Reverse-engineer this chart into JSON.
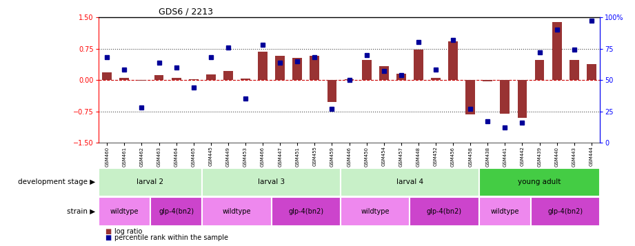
{
  "title": "GDS6 / 2213",
  "samples": [
    "GSM460",
    "GSM461",
    "GSM462",
    "GSM463",
    "GSM464",
    "GSM465",
    "GSM445",
    "GSM449",
    "GSM453",
    "GSM466",
    "GSM447",
    "GSM451",
    "GSM455",
    "GSM459",
    "GSM446",
    "GSM450",
    "GSM454",
    "GSM457",
    "GSM448",
    "GSM452",
    "GSM456",
    "GSM458",
    "GSM438",
    "GSM441",
    "GSM442",
    "GSM439",
    "GSM440",
    "GSM443",
    "GSM444"
  ],
  "log_ratio": [
    0.18,
    0.05,
    -0.02,
    0.12,
    0.05,
    0.02,
    0.14,
    0.22,
    0.04,
    0.68,
    0.57,
    0.52,
    0.57,
    -0.52,
    0.02,
    0.48,
    0.33,
    0.15,
    0.72,
    0.05,
    0.92,
    -0.82,
    -0.03,
    -0.8,
    -0.9,
    0.48,
    1.38,
    0.48,
    0.38
  ],
  "percentile": [
    68,
    58,
    28,
    64,
    60,
    44,
    68,
    76,
    35,
    78,
    64,
    65,
    68,
    27,
    50,
    70,
    57,
    54,
    80,
    58,
    82,
    27,
    17,
    12,
    16,
    72,
    90,
    74,
    97
  ],
  "dev_stage_groups": [
    {
      "label": "larval 2",
      "start": 0,
      "end": 5,
      "color": "#c8f0c8"
    },
    {
      "label": "larval 3",
      "start": 6,
      "end": 13,
      "color": "#c8f0c8"
    },
    {
      "label": "larval 4",
      "start": 14,
      "end": 21,
      "color": "#c8f0c8"
    },
    {
      "label": "young adult",
      "start": 22,
      "end": 28,
      "color": "#44cc44"
    }
  ],
  "strain_groups": [
    {
      "label": "wildtype",
      "start": 0,
      "end": 2,
      "color": "#ee88ee"
    },
    {
      "label": "glp-4(bn2)",
      "start": 3,
      "end": 5,
      "color": "#cc44cc"
    },
    {
      "label": "wildtype",
      "start": 6,
      "end": 9,
      "color": "#ee88ee"
    },
    {
      "label": "glp-4(bn2)",
      "start": 10,
      "end": 13,
      "color": "#cc44cc"
    },
    {
      "label": "wildtype",
      "start": 14,
      "end": 17,
      "color": "#ee88ee"
    },
    {
      "label": "glp-4(bn2)",
      "start": 18,
      "end": 21,
      "color": "#cc44cc"
    },
    {
      "label": "wildtype",
      "start": 22,
      "end": 24,
      "color": "#ee88ee"
    },
    {
      "label": "glp-4(bn2)",
      "start": 25,
      "end": 28,
      "color": "#cc44cc"
    }
  ],
  "ylim": [
    -1.5,
    1.5
  ],
  "y2lim": [
    0,
    100
  ],
  "yticks_left": [
    -1.5,
    -0.75,
    0.0,
    0.75,
    1.5
  ],
  "yticks_right": [
    0,
    25,
    50,
    75,
    100
  ],
  "bar_color": "#993333",
  "dot_color": "#000099",
  "hline_color": "#cc0000",
  "dotted_color": "#444444",
  "bg_color": "#ffffff"
}
